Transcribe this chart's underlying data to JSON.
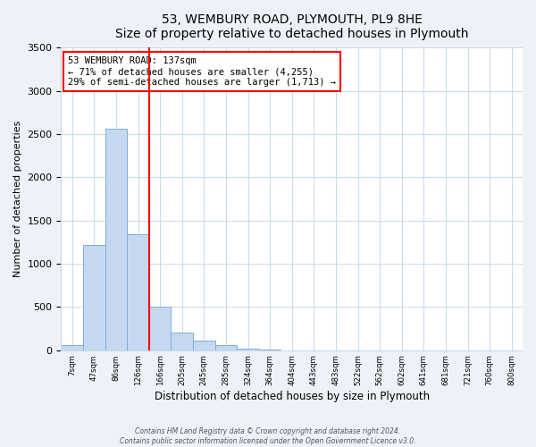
{
  "title": "53, WEMBURY ROAD, PLYMOUTH, PL9 8HE",
  "subtitle": "Size of property relative to detached houses in Plymouth",
  "xlabel": "Distribution of detached houses by size in Plymouth",
  "ylabel": "Number of detached properties",
  "bin_labels": [
    "7sqm",
    "47sqm",
    "86sqm",
    "126sqm",
    "166sqm",
    "205sqm",
    "245sqm",
    "285sqm",
    "324sqm",
    "364sqm",
    "404sqm",
    "443sqm",
    "483sqm",
    "522sqm",
    "562sqm",
    "602sqm",
    "641sqm",
    "681sqm",
    "721sqm",
    "760sqm",
    "800sqm"
  ],
  "bar_values": [
    55,
    1220,
    2560,
    1340,
    500,
    200,
    110,
    55,
    15,
    5,
    0,
    0,
    0,
    0,
    0,
    0,
    0,
    0,
    0,
    0,
    0
  ],
  "bar_color": "#c5d8f0",
  "bar_edge_color": "#7bafd4",
  "vline_color": "red",
  "vline_position": 3.5,
  "annotation_title": "53 WEMBURY ROAD: 137sqm",
  "annotation_line1": "← 71% of detached houses are smaller (4,255)",
  "annotation_line2": "29% of semi-detached houses are larger (1,713) →",
  "annotation_box_color": "red",
  "ylim": [
    0,
    3500
  ],
  "yticks": [
    0,
    500,
    1000,
    1500,
    2000,
    2500,
    3000,
    3500
  ],
  "footer_line1": "Contains HM Land Registry data © Crown copyright and database right 2024.",
  "footer_line2": "Contains public sector information licensed under the Open Government Licence v3.0.",
  "bg_color": "#eef2f8",
  "plot_bg_color": "#ffffff"
}
